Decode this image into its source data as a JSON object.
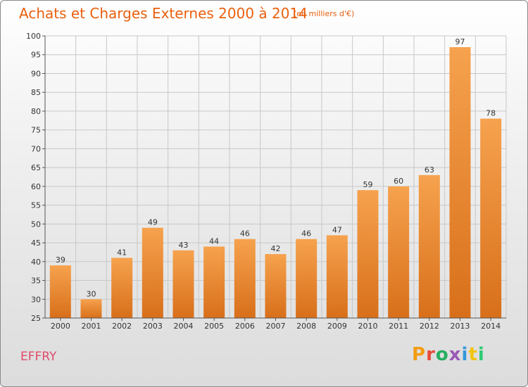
{
  "header": {
    "title": "Achats et Charges Externes 2000 à 2014",
    "subtitle": "(en milliers d'€)"
  },
  "footer": {
    "commune": "EFFRY",
    "brand": "Proxiti",
    "brand_colors": [
      "#f39c12",
      "#e74c3c",
      "#27ae60",
      "#9b59b6",
      "#3498db",
      "#f1c40f",
      "#2ecc71"
    ]
  },
  "colors": {
    "bar_top": "#f6a24e",
    "bar_bottom": "#d86f1a",
    "title": "#e8600e",
    "grid": "#c8c8c8",
    "commune": "#e04b6a"
  },
  "chart_data": {
    "type": "bar",
    "title": "Achats et Charges Externes 2000 à 2014",
    "subtitle": "(en milliers d'€)",
    "categories": [
      "2000",
      "2001",
      "2002",
      "2003",
      "2004",
      "2005",
      "2006",
      "2007",
      "2008",
      "2009",
      "2010",
      "2011",
      "2012",
      "2013",
      "2014"
    ],
    "values": [
      39,
      30,
      41,
      49,
      43,
      44,
      46,
      42,
      46,
      47,
      59,
      60,
      63,
      97,
      78
    ],
    "ylim": [
      25,
      100
    ],
    "yticks": [
      25,
      30,
      35,
      40,
      45,
      50,
      55,
      60,
      65,
      70,
      75,
      80,
      85,
      90,
      95,
      100
    ],
    "xlabel": "",
    "ylabel": "",
    "grid": true
  }
}
